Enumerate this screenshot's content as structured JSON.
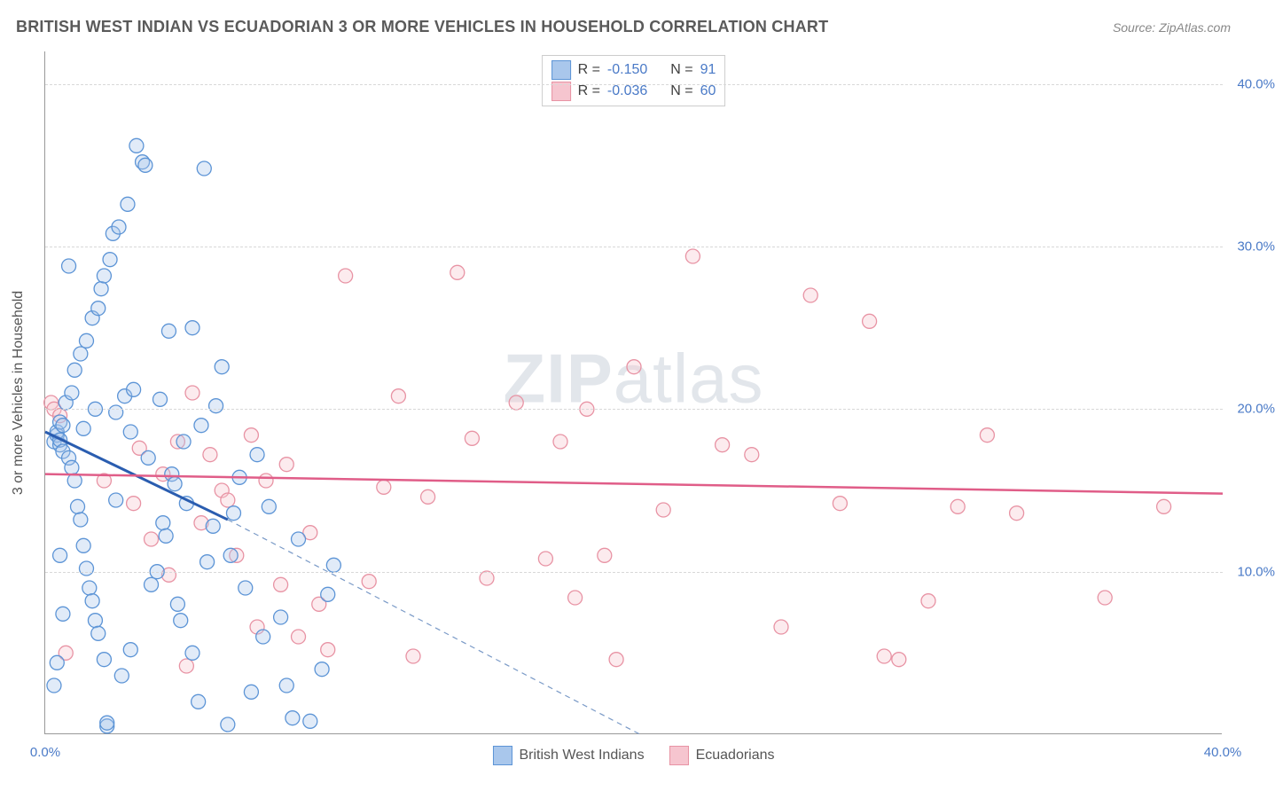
{
  "title": "BRITISH WEST INDIAN VS ECUADORIAN 3 OR MORE VEHICLES IN HOUSEHOLD CORRELATION CHART",
  "source_label": "Source: ",
  "source_name": "ZipAtlas.com",
  "ylabel": "3 or more Vehicles in Household",
  "watermark_bold": "ZIP",
  "watermark_rest": "atlas",
  "chart": {
    "type": "scatter",
    "xlim": [
      0,
      40
    ],
    "ylim": [
      0,
      42
    ],
    "xtick_labels": [
      "0.0%",
      "40.0%"
    ],
    "xtick_positions": [
      0,
      40
    ],
    "ytick_labels": [
      "10.0%",
      "20.0%",
      "30.0%",
      "40.0%"
    ],
    "ytick_positions": [
      10,
      20,
      30,
      40
    ],
    "grid_color": "#d8d8d8",
    "background_color": "#ffffff",
    "marker_radius": 8,
    "series": [
      {
        "name": "British West Indians",
        "fill": "#a9c7ec",
        "stroke": "#5c94d6",
        "R": "-0.150",
        "N": "91",
        "trend_solid": {
          "x1": 0,
          "y1": 18.6,
          "x2": 6.2,
          "y2": 13.2
        },
        "trend_dash": {
          "x1": 6.2,
          "y1": 13.2,
          "x2": 20.2,
          "y2": 0
        },
        "points": [
          [
            0.3,
            18.0
          ],
          [
            0.4,
            18.4
          ],
          [
            0.4,
            18.6
          ],
          [
            0.5,
            17.8
          ],
          [
            0.5,
            19.2
          ],
          [
            0.5,
            18.1
          ],
          [
            0.6,
            19.0
          ],
          [
            0.6,
            17.4
          ],
          [
            0.7,
            20.4
          ],
          [
            0.8,
            17.0
          ],
          [
            0.9,
            16.4
          ],
          [
            0.9,
            21.0
          ],
          [
            1.0,
            15.6
          ],
          [
            1.0,
            22.4
          ],
          [
            1.1,
            14.0
          ],
          [
            1.2,
            13.2
          ],
          [
            1.2,
            23.4
          ],
          [
            1.3,
            11.6
          ],
          [
            1.4,
            10.2
          ],
          [
            1.4,
            24.2
          ],
          [
            1.5,
            9.0
          ],
          [
            1.6,
            8.2
          ],
          [
            1.6,
            25.6
          ],
          [
            1.7,
            7.0
          ],
          [
            1.8,
            6.2
          ],
          [
            1.8,
            26.2
          ],
          [
            1.9,
            27.4
          ],
          [
            2.0,
            28.2
          ],
          [
            2.0,
            4.6
          ],
          [
            2.1,
            0.5
          ],
          [
            2.1,
            0.7
          ],
          [
            2.2,
            29.2
          ],
          [
            2.3,
            30.8
          ],
          [
            2.4,
            19.8
          ],
          [
            2.5,
            31.2
          ],
          [
            2.6,
            3.6
          ],
          [
            2.7,
            20.8
          ],
          [
            2.8,
            32.6
          ],
          [
            2.9,
            5.2
          ],
          [
            3.0,
            21.2
          ],
          [
            3.1,
            36.2
          ],
          [
            3.3,
            35.2
          ],
          [
            3.4,
            35.0
          ],
          [
            3.5,
            17.0
          ],
          [
            3.6,
            9.2
          ],
          [
            3.8,
            10.0
          ],
          [
            3.9,
            20.6
          ],
          [
            4.0,
            13.0
          ],
          [
            4.1,
            12.2
          ],
          [
            4.2,
            24.8
          ],
          [
            4.3,
            16.0
          ],
          [
            4.4,
            15.4
          ],
          [
            4.5,
            8.0
          ],
          [
            4.6,
            7.0
          ],
          [
            4.7,
            18.0
          ],
          [
            4.8,
            14.2
          ],
          [
            5.0,
            5.0
          ],
          [
            5.0,
            25.0
          ],
          [
            5.2,
            2.0
          ],
          [
            5.3,
            19.0
          ],
          [
            5.4,
            34.8
          ],
          [
            5.5,
            10.6
          ],
          [
            5.7,
            12.8
          ],
          [
            5.8,
            20.2
          ],
          [
            6.0,
            22.6
          ],
          [
            6.2,
            0.6
          ],
          [
            6.3,
            11.0
          ],
          [
            6.4,
            13.6
          ],
          [
            6.6,
            15.8
          ],
          [
            6.8,
            9.0
          ],
          [
            7.0,
            2.6
          ],
          [
            7.2,
            17.2
          ],
          [
            7.4,
            6.0
          ],
          [
            7.6,
            14.0
          ],
          [
            8.0,
            7.2
          ],
          [
            8.2,
            3.0
          ],
          [
            8.4,
            1.0
          ],
          [
            8.6,
            12.0
          ],
          [
            9.0,
            0.8
          ],
          [
            9.4,
            4.0
          ],
          [
            9.6,
            8.6
          ],
          [
            9.8,
            10.4
          ],
          [
            0.3,
            3.0
          ],
          [
            0.4,
            4.4
          ],
          [
            0.5,
            11.0
          ],
          [
            0.6,
            7.4
          ],
          [
            0.8,
            28.8
          ],
          [
            1.3,
            18.8
          ],
          [
            1.7,
            20.0
          ],
          [
            2.4,
            14.4
          ],
          [
            2.9,
            18.6
          ]
        ]
      },
      {
        "name": "Ecuadorians",
        "fill": "#f6c5cf",
        "stroke": "#e893a4",
        "R": "-0.036",
        "N": "60",
        "trend_solid": {
          "x1": 0,
          "y1": 16.0,
          "x2": 40,
          "y2": 14.8
        },
        "trend_color": "#e05d88",
        "points": [
          [
            0.2,
            20.4
          ],
          [
            0.3,
            20.0
          ],
          [
            0.5,
            19.6
          ],
          [
            0.7,
            5.0
          ],
          [
            2.0,
            15.6
          ],
          [
            3.0,
            14.2
          ],
          [
            3.2,
            17.6
          ],
          [
            3.6,
            12.0
          ],
          [
            4.0,
            16.0
          ],
          [
            4.2,
            9.8
          ],
          [
            4.5,
            18.0
          ],
          [
            4.8,
            4.2
          ],
          [
            5.0,
            21.0
          ],
          [
            5.3,
            13.0
          ],
          [
            5.6,
            17.2
          ],
          [
            6.0,
            15.0
          ],
          [
            6.2,
            14.4
          ],
          [
            6.5,
            11.0
          ],
          [
            7.0,
            18.4
          ],
          [
            7.2,
            6.6
          ],
          [
            7.5,
            15.6
          ],
          [
            8.0,
            9.2
          ],
          [
            8.2,
            16.6
          ],
          [
            8.6,
            6.0
          ],
          [
            9.0,
            12.4
          ],
          [
            9.3,
            8.0
          ],
          [
            9.6,
            5.2
          ],
          [
            10.2,
            28.2
          ],
          [
            11.0,
            9.4
          ],
          [
            12.0,
            20.8
          ],
          [
            12.5,
            4.8
          ],
          [
            13.0,
            14.6
          ],
          [
            14.0,
            28.4
          ],
          [
            14.5,
            18.2
          ],
          [
            15.0,
            9.6
          ],
          [
            16.0,
            20.4
          ],
          [
            17.0,
            10.8
          ],
          [
            17.5,
            18.0
          ],
          [
            18.0,
            8.4
          ],
          [
            18.4,
            20.0
          ],
          [
            19.0,
            11.0
          ],
          [
            20.0,
            22.6
          ],
          [
            21.0,
            13.8
          ],
          [
            22.0,
            29.4
          ],
          [
            23.0,
            17.8
          ],
          [
            24.0,
            17.2
          ],
          [
            25.0,
            6.6
          ],
          [
            26.0,
            27.0
          ],
          [
            27.0,
            14.2
          ],
          [
            28.0,
            25.4
          ],
          [
            28.5,
            4.8
          ],
          [
            29.0,
            4.6
          ],
          [
            30.0,
            8.2
          ],
          [
            31.0,
            14.0
          ],
          [
            32.0,
            18.4
          ],
          [
            33.0,
            13.6
          ],
          [
            36.0,
            8.4
          ],
          [
            38.0,
            14.0
          ],
          [
            19.4,
            4.6
          ],
          [
            11.5,
            15.2
          ]
        ]
      }
    ]
  },
  "legend_bottom": [
    {
      "label": "British West Indians",
      "fill": "#a9c7ec",
      "stroke": "#5c94d6"
    },
    {
      "label": "Ecuadorians",
      "fill": "#f6c5cf",
      "stroke": "#e893a4"
    }
  ],
  "R_label": "R  = ",
  "N_label": "N  = "
}
